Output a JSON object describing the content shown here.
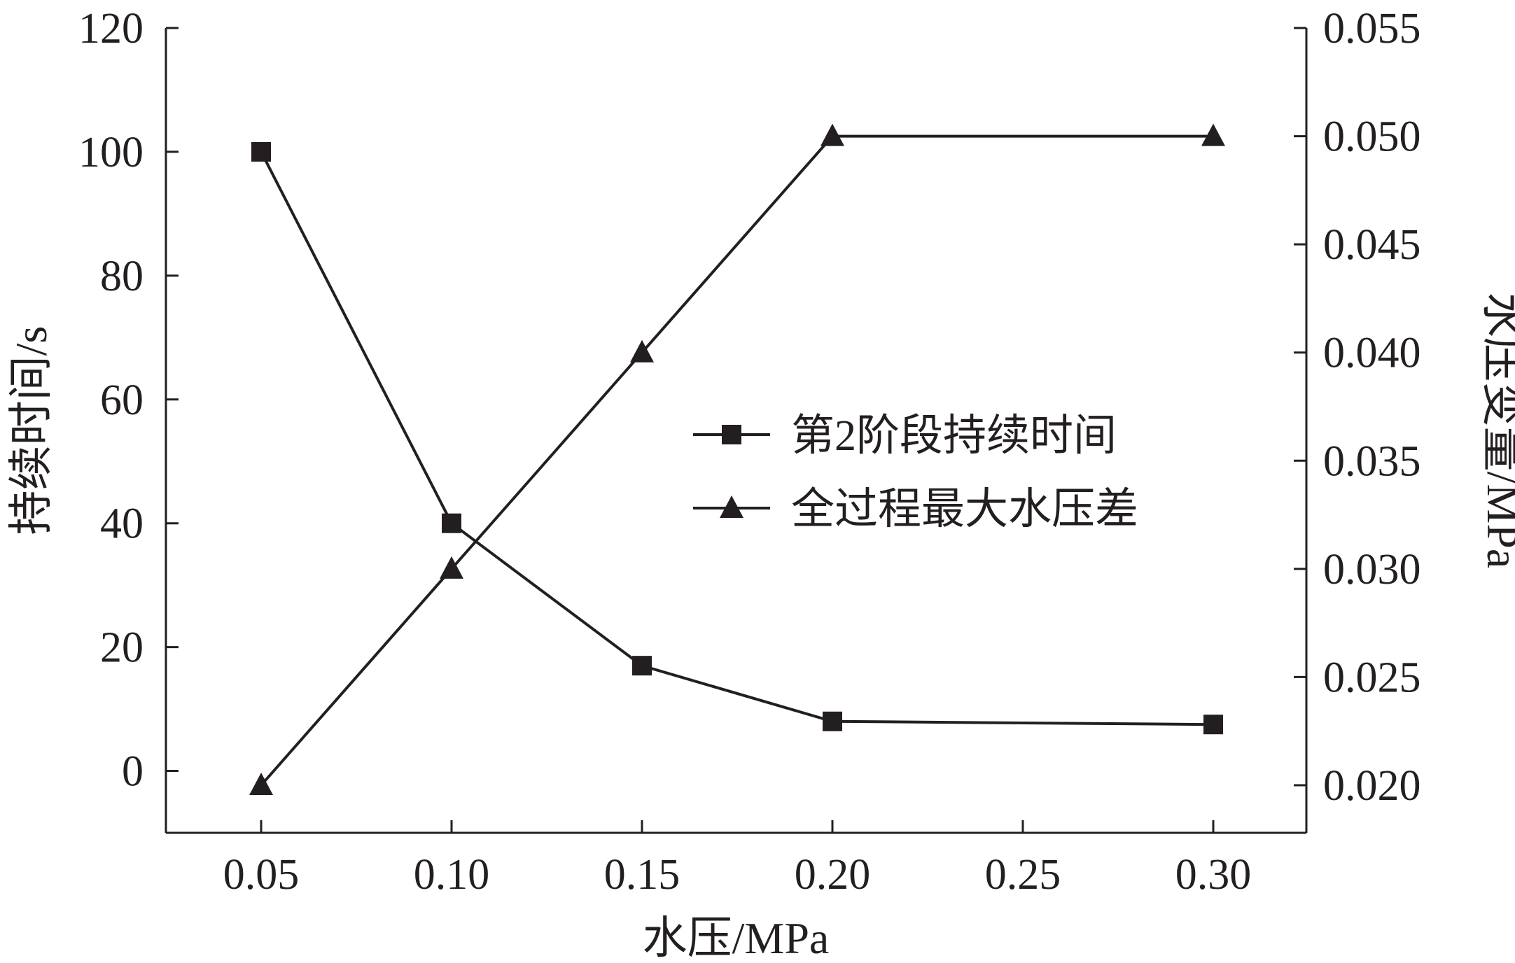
{
  "chart_data": {
    "type": "line",
    "x_categories": [
      "0.05",
      "0.10",
      "0.15",
      "0.20",
      "0.25",
      "0.30"
    ],
    "xlabel": "水压/MPa",
    "ylabel_left": "持续时间/s",
    "ylabel_right": "水压变量/MPa",
    "ylim_left": [
      -10,
      120
    ],
    "yticks_left": [
      "0",
      "20",
      "40",
      "60",
      "80",
      "100",
      "120"
    ],
    "ylim_right": [
      0.0178,
      0.055
    ],
    "yticks_right": [
      "0.020",
      "0.025",
      "0.030",
      "0.035",
      "0.040",
      "0.045",
      "0.050",
      "0.055"
    ],
    "grid": false,
    "legend_position": "right-center",
    "series": [
      {
        "name": "第2阶段持续时间",
        "axis": "left",
        "marker": "square",
        "x": [
          "0.05",
          "0.10",
          "0.15",
          "0.20",
          "0.30"
        ],
        "values": [
          100,
          40,
          17,
          8,
          7.5
        ]
      },
      {
        "name": "全过程最大水压差",
        "axis": "right",
        "marker": "triangle",
        "x": [
          "0.05",
          "0.10",
          "0.15",
          "0.20",
          "0.30"
        ],
        "values": [
          0.02,
          0.03,
          0.04,
          0.05,
          0.05
        ]
      }
    ]
  }
}
